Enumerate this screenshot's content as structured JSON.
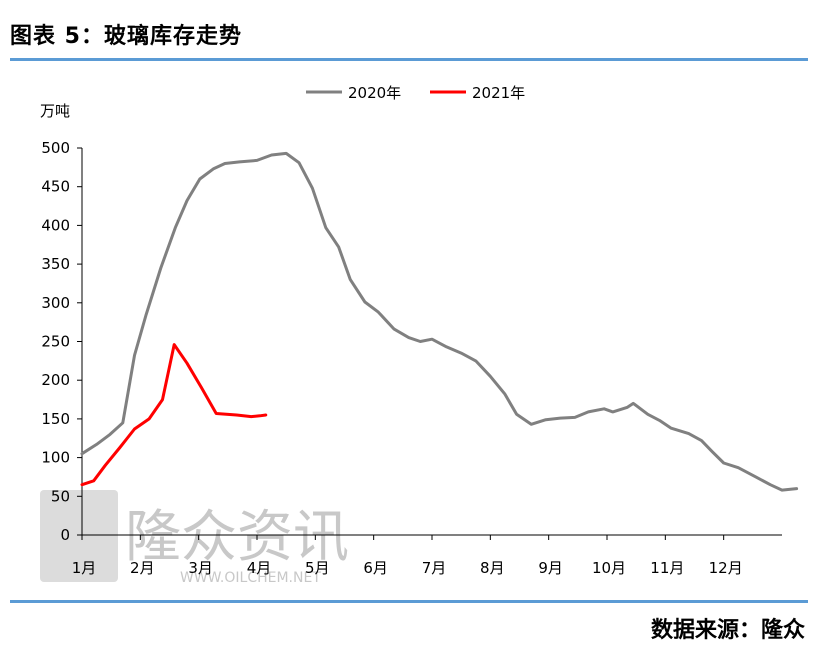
{
  "header": {
    "title": "图表 5：玻璃库存走势"
  },
  "footer": {
    "source": "数据来源：隆众"
  },
  "watermark": {
    "brand": "隆众资讯",
    "url": "WWW.OILCHEM.NET"
  },
  "colors": {
    "series_2020": "#808080",
    "series_2021": "#ff0000",
    "rule": "#5b9bd5"
  },
  "chart_data": {
    "type": "line",
    "title": "",
    "ylabel": "万吨",
    "xlabel": "",
    "ylim": [
      0,
      500
    ],
    "yticks": [
      0,
      50,
      100,
      150,
      200,
      250,
      300,
      350,
      400,
      450,
      500
    ],
    "xlim": [
      1,
      13
    ],
    "xticks": [
      {
        "label": "1月",
        "x": 1
      },
      {
        "label": "2月",
        "x": 2
      },
      {
        "label": "3月",
        "x": 3
      },
      {
        "label": "4月",
        "x": 4
      },
      {
        "label": "5月",
        "x": 5
      },
      {
        "label": "6月",
        "x": 6
      },
      {
        "label": "7月",
        "x": 7
      },
      {
        "label": "8月",
        "x": 8
      },
      {
        "label": "9月",
        "x": 9
      },
      {
        "label": "10月",
        "x": 10
      },
      {
        "label": "11月",
        "x": 11
      },
      {
        "label": "12月",
        "x": 12
      }
    ],
    "grid": false,
    "legend": "top-center",
    "series": [
      {
        "name": "2020年",
        "points": [
          [
            1.0,
            105
          ],
          [
            1.25,
            117
          ],
          [
            1.48,
            130
          ],
          [
            1.7,
            145
          ],
          [
            1.9,
            232
          ],
          [
            2.1,
            285
          ],
          [
            2.35,
            345
          ],
          [
            2.6,
            397
          ],
          [
            2.8,
            432
          ],
          [
            3.02,
            460
          ],
          [
            3.25,
            473
          ],
          [
            3.45,
            480
          ],
          [
            3.7,
            482
          ],
          [
            4.0,
            484
          ],
          [
            4.25,
            491
          ],
          [
            4.5,
            493
          ],
          [
            4.72,
            481
          ],
          [
            4.95,
            448
          ],
          [
            5.18,
            397
          ],
          [
            5.4,
            372
          ],
          [
            5.6,
            330
          ],
          [
            5.85,
            301
          ],
          [
            6.08,
            288
          ],
          [
            6.35,
            266
          ],
          [
            6.6,
            255
          ],
          [
            6.8,
            250
          ],
          [
            7.0,
            253
          ],
          [
            7.25,
            243
          ],
          [
            7.5,
            235
          ],
          [
            7.75,
            225
          ],
          [
            8.0,
            205
          ],
          [
            8.25,
            182
          ],
          [
            8.45,
            156
          ],
          [
            8.7,
            143
          ],
          [
            8.95,
            149
          ],
          [
            9.2,
            151
          ],
          [
            9.45,
            152
          ],
          [
            9.68,
            159
          ],
          [
            9.95,
            163
          ],
          [
            10.1,
            159
          ],
          [
            10.35,
            165
          ],
          [
            10.45,
            170
          ],
          [
            10.7,
            156
          ],
          [
            10.9,
            148
          ],
          [
            11.1,
            138
          ],
          [
            11.4,
            131
          ],
          [
            11.62,
            122
          ],
          [
            11.8,
            108
          ],
          [
            12.0,
            93
          ],
          [
            12.25,
            87
          ],
          [
            12.55,
            75
          ],
          [
            12.8,
            65
          ],
          [
            13.0,
            58
          ],
          [
            13.25,
            60
          ]
        ]
      },
      {
        "name": "2021年",
        "points": [
          [
            1.0,
            65
          ],
          [
            1.2,
            70
          ],
          [
            1.4,
            90
          ],
          [
            1.65,
            113
          ],
          [
            1.9,
            137
          ],
          [
            2.15,
            150
          ],
          [
            2.38,
            175
          ],
          [
            2.58,
            246
          ],
          [
            2.8,
            222
          ],
          [
            3.05,
            190
          ],
          [
            3.3,
            157
          ],
          [
            3.65,
            155
          ],
          [
            3.9,
            153
          ],
          [
            4.05,
            154
          ],
          [
            4.15,
            155
          ]
        ]
      }
    ]
  }
}
